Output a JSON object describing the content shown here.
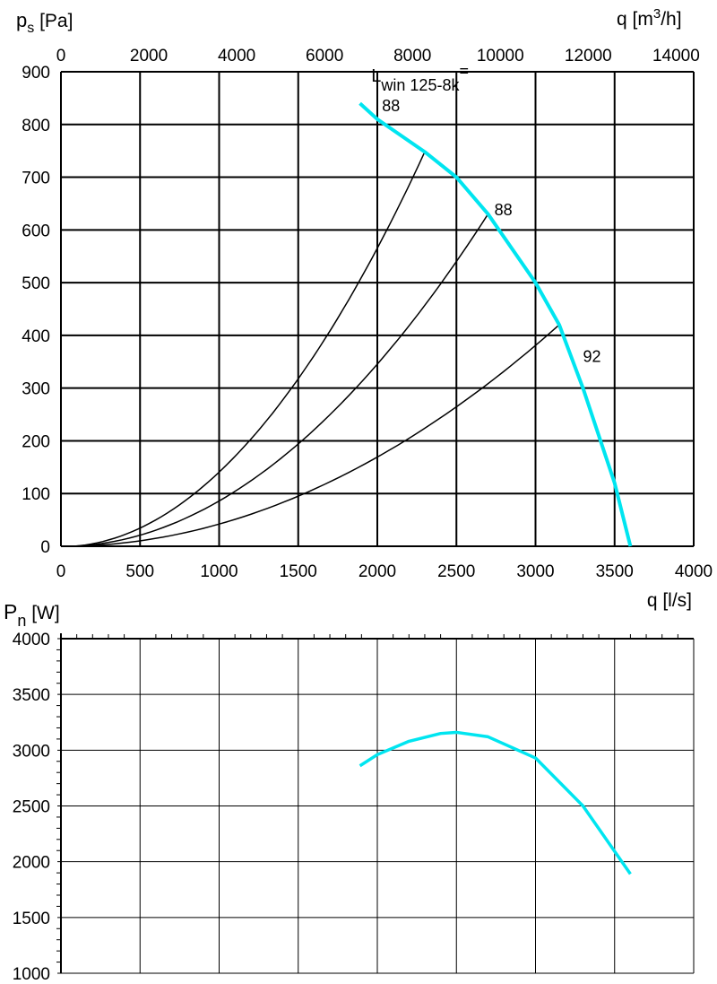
{
  "chart_data": [
    {
      "type": "line",
      "title": "",
      "ylabel": {
        "main": "p",
        "sub": "s",
        "unit": "[Pa]"
      },
      "xlabel": "q [l/s]",
      "x2label": {
        "main": "q [m",
        "sup": "3",
        "end": "/h]"
      },
      "xlim": [
        0,
        4000
      ],
      "ylim": [
        0,
        900
      ],
      "x_ticks": [
        0,
        500,
        1000,
        1500,
        2000,
        2500,
        3000,
        3500,
        4000
      ],
      "y_ticks": [
        0,
        100,
        200,
        300,
        400,
        500,
        600,
        700,
        800,
        900
      ],
      "x2_ticks": [
        0,
        2000,
        4000,
        6000,
        8000,
        10000,
        12000,
        14000
      ],
      "x2_factor_m3h_per_ls": 3.6,
      "grid": true,
      "fan_curve": {
        "name": "fan",
        "color": "#00e5f0",
        "points": [
          [
            1890,
            840
          ],
          [
            2000,
            810
          ],
          [
            2300,
            748
          ],
          [
            2500,
            700
          ],
          [
            2700,
            630
          ],
          [
            3000,
            500
          ],
          [
            3150,
            420
          ],
          [
            3300,
            300
          ],
          [
            3500,
            120
          ],
          [
            3600,
            0
          ]
        ]
      },
      "system_curves": [
        {
          "end": [
            2300,
            748
          ],
          "label": "88",
          "label_at": [
            2030,
            825
          ]
        },
        {
          "end": [
            2700,
            630
          ],
          "label": "88",
          "label_at": [
            2740,
            628
          ]
        },
        {
          "end": [
            3150,
            420
          ],
          "label": "92",
          "label_at": [
            3300,
            350
          ]
        }
      ],
      "annotation": {
        "main": "L",
        "sub": "win 125-8k",
        "end": "=",
        "at": [
          2030,
          878
        ]
      }
    },
    {
      "type": "line",
      "ylabel": {
        "main": "P",
        "sub": "n",
        "unit": "[W]"
      },
      "xlim": [
        0,
        4000
      ],
      "ylim": [
        1000,
        4000
      ],
      "y_ticks": [
        1000,
        1500,
        2000,
        2500,
        3000,
        3500,
        4000
      ],
      "grid": true,
      "series": [
        {
          "name": "power",
          "color": "#00e5f0",
          "points": [
            [
              1890,
              2860
            ],
            [
              2000,
              2960
            ],
            [
              2200,
              3080
            ],
            [
              2400,
              3150
            ],
            [
              2500,
              3160
            ],
            [
              2700,
              3120
            ],
            [
              3000,
              2930
            ],
            [
              3300,
              2500
            ],
            [
              3600,
              1890
            ]
          ]
        }
      ]
    }
  ]
}
